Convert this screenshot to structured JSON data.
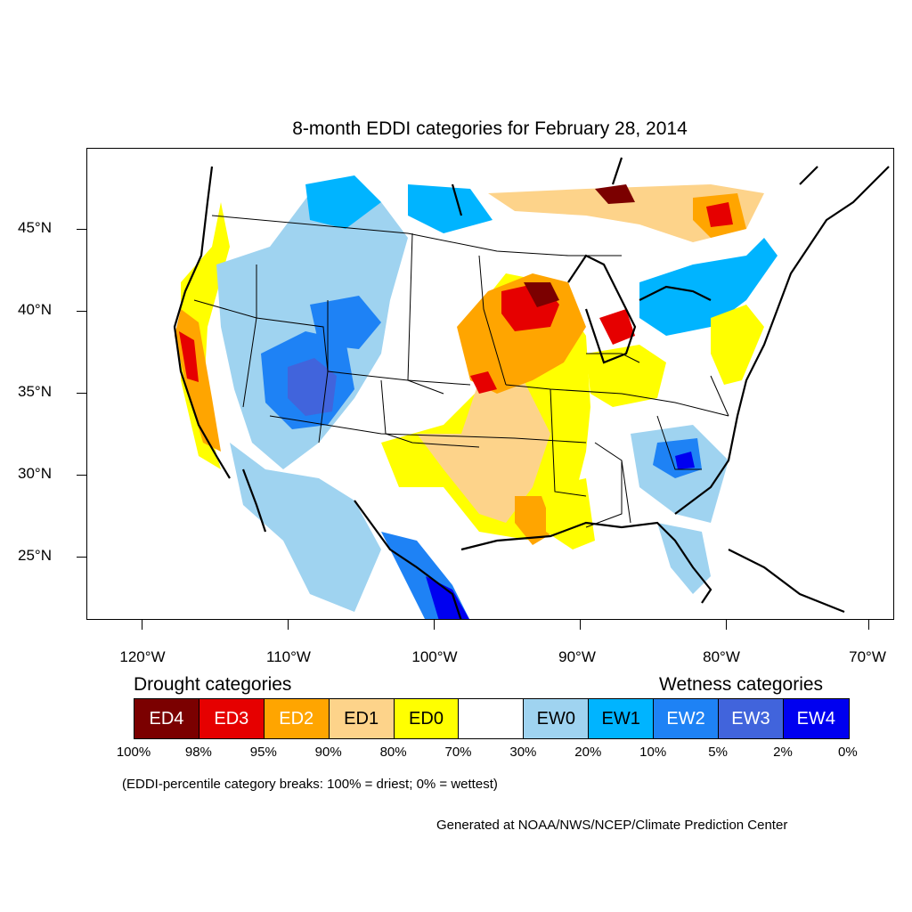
{
  "title": "8-month EDDI categories for February 28, 2014",
  "axes": {
    "y_labels": [
      "45°N",
      "40°N",
      "35°N",
      "30°N",
      "25°N"
    ],
    "x_labels": [
      "120°W",
      "110°W",
      "100°W",
      "90°W",
      "80°W",
      "70°W"
    ]
  },
  "legend": {
    "drought_heading": "Drought categories",
    "wetness_heading": "Wetness categories",
    "categories": [
      {
        "label": "ED4",
        "color": "#7b0000",
        "text_color": "#ffffff"
      },
      {
        "label": "ED3",
        "color": "#e60000",
        "text_color": "#ffffff"
      },
      {
        "label": "ED2",
        "color": "#ffa500",
        "text_color": "#ffffff"
      },
      {
        "label": "ED1",
        "color": "#fdd38a",
        "text_color": "#000000"
      },
      {
        "label": "ED0",
        "color": "#ffff00",
        "text_color": "#000000"
      },
      {
        "label": "",
        "color": "#ffffff",
        "text_color": "#000000"
      },
      {
        "label": "EW0",
        "color": "#9fd3f0",
        "text_color": "#000000"
      },
      {
        "label": "EW1",
        "color": "#00b4ff",
        "text_color": "#000000"
      },
      {
        "label": "EW2",
        "color": "#1e82f5",
        "text_color": "#ffffff"
      },
      {
        "label": "EW3",
        "color": "#4164dc",
        "text_color": "#ffffff"
      },
      {
        "label": "EW4",
        "color": "#0000f0",
        "text_color": "#ffffff"
      }
    ],
    "breaks": [
      "100%",
      "98%",
      "95%",
      "90%",
      "80%",
      "70%",
      "30%",
      "20%",
      "10%",
      "5%",
      "2%",
      "0%"
    ]
  },
  "note": "(EDDI-percentile category breaks: 100% = driest; 0% = wettest)",
  "credit": "Generated at NOAA/NWS/NCEP/Climate Prediction Center"
}
